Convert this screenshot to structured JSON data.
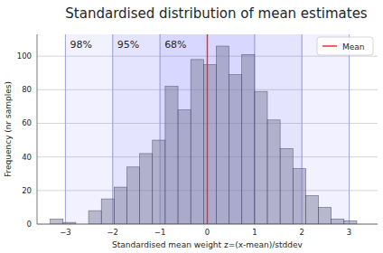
{
  "chart_data": {
    "type": "histogram",
    "title": "Standardised distribution of mean estimates",
    "x_label": "Standardised mean weight z=(x-mean)/stddev",
    "y_label": "Frequency (nr samples)",
    "bins": [
      -3.32,
      -3.05,
      -2.78,
      -2.51,
      -2.24,
      -1.97,
      -1.7,
      -1.43,
      -1.16,
      -0.89,
      -0.62,
      -0.35,
      -0.08,
      0.19,
      0.46,
      0.73,
      1.0,
      1.27,
      1.54,
      1.81,
      2.08,
      2.35,
      2.62,
      2.89,
      3.16
    ],
    "values": [
      3,
      1,
      0,
      8,
      15,
      22,
      34,
      42,
      50,
      82,
      68,
      98,
      95,
      106,
      89,
      101,
      79,
      62,
      45,
      33,
      17,
      10,
      3,
      2
    ],
    "color": "#7d7d9c",
    "bands": [
      {
        "label": "98%",
        "range": [
          -3,
          3
        ]
      },
      {
        "label": "95%",
        "range": [
          -2,
          2
        ]
      },
      {
        "label": "68%",
        "range": [
          -1,
          1
        ]
      }
    ],
    "band_color": "#3333ff",
    "mean_line": {
      "name": "Mean",
      "value": 0,
      "color": "#e8322a"
    },
    "legend": "upper right",
    "xlim": [
      -3.6,
      3.6
    ],
    "ylim": [
      0,
      113
    ],
    "xticks": [
      -3,
      -2,
      -1,
      0,
      1,
      2,
      3
    ],
    "yticks": [
      0,
      20,
      40,
      60,
      80,
      100
    ],
    "grid": true
  }
}
